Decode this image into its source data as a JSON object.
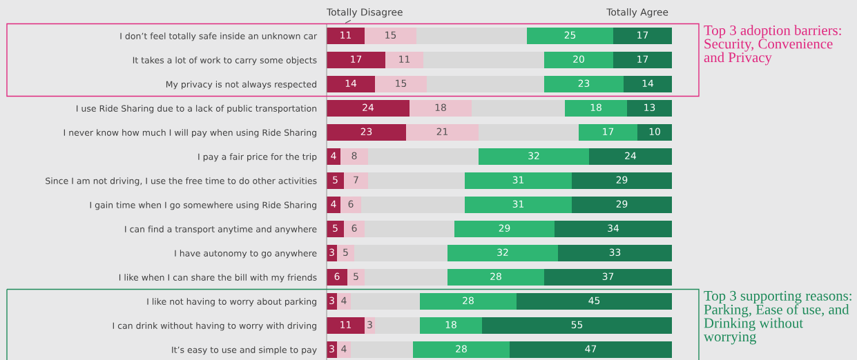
{
  "chart_data": {
    "type": "bar",
    "orientation": "horizontal",
    "stacked": true,
    "tick_labels": "y",
    "grid": false,
    "legend": false,
    "categories": [
      "I don’t feel totally safe inside an unknown car",
      "It takes a lot of work to carry some objects",
      "My privacy is not always respected",
      "I use Ride Sharing due to a lack of public transportation",
      "I never know how much I will pay when using Ride Sharing",
      "I pay a fair price for the trip",
      "Since I am not driving, I use the free time to do other activities",
      "I gain time when I go somewhere using Ride Sharing",
      "I can find a transport anytime and anywhere",
      "I have autonomy to go anywhere",
      "I like when I can share the bill with my friends",
      "I like not having to worry about parking",
      "I can drink without having to worry with driving",
      "It’s easy to use and simple to pay"
    ],
    "series": [
      {
        "color": "#a4224a",
        "values": [
          11,
          17,
          14,
          24,
          23,
          4,
          5,
          4,
          5,
          3,
          6,
          3,
          11,
          3
        ],
        "value_labels": [
          "11",
          "17",
          "14",
          "24",
          "23",
          "4",
          "5",
          "4",
          "5",
          "3",
          "6",
          "3",
          "11",
          "3"
        ]
      },
      {
        "color": "#ecc4cf",
        "values": [
          15,
          11,
          15,
          18,
          21,
          8,
          7,
          6,
          6,
          5,
          5,
          4,
          3,
          4
        ],
        "value_labels": [
          "15",
          "11",
          "15",
          "18",
          "21",
          "8",
          "7",
          "6",
          "6",
          "5",
          "5",
          "4",
          "3",
          "4"
        ]
      },
      {
        "color": "#d9d9d9",
        "values": [
          32,
          35,
          34,
          27,
          29,
          32,
          28,
          30,
          26,
          27,
          24,
          20,
          13,
          18
        ]
      },
      {
        "color": "#2fb673",
        "values": [
          25,
          20,
          23,
          18,
          17,
          32,
          31,
          31,
          29,
          32,
          28,
          28,
          18,
          28
        ],
        "value_labels": [
          "25",
          "20",
          "23",
          "18",
          "17",
          "32",
          "31",
          "31",
          "29",
          "32",
          "28",
          "28",
          "18",
          "28"
        ]
      },
      {
        "color": "#1b7a53",
        "values": [
          17,
          17,
          14,
          13,
          10,
          24,
          29,
          29,
          34,
          33,
          37,
          45,
          55,
          47
        ],
        "value_labels": [
          "17",
          "17",
          "14",
          "13",
          "10",
          "24",
          "29",
          "29",
          "34",
          "33",
          "37",
          "45",
          "55",
          "47"
        ]
      }
    ],
    "annotations": [
      "Totally Disagree",
      "Totally Agree",
      "Top 3 adoption barriers:  Security, Convenience and Privacy",
      "Top 3 supporting reasons: Parking, Ease of use, and Drinking without worrying"
    ]
  }
}
